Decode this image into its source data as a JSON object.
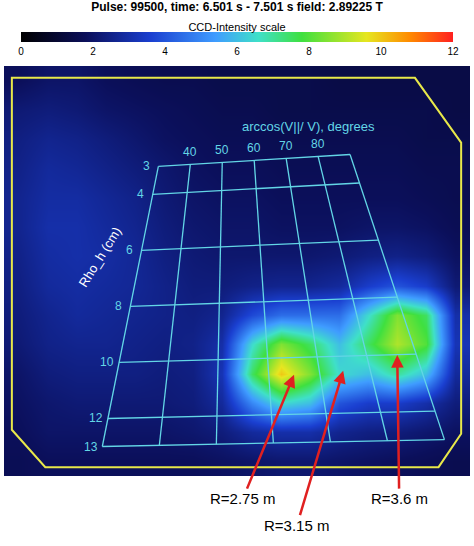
{
  "chart_data": {
    "type": "heatmap",
    "title": "Pulse: 99500, time: 6.501 s - 7.501 s field: 2.89225 T",
    "colorbar_title": "CCD-Intensity scale",
    "clim": [
      0,
      12
    ],
    "cticks": [
      0,
      2,
      4,
      6,
      8,
      10,
      12
    ],
    "tick_labels": false,
    "z": [
      [
        1.8,
        2,
        2,
        1.8,
        1.7,
        1.6,
        1.6,
        1.5,
        1.5,
        1.5,
        1.5,
        1.4,
        1.4,
        1.4,
        1.4,
        1.4
      ],
      [
        2.2,
        2.3,
        2.2,
        2,
        1.9,
        1.8,
        1.7,
        1.6,
        1.6,
        1.5,
        1.5,
        1.5,
        1.5,
        1.5,
        1.5,
        1.4
      ],
      [
        2.4,
        2.6,
        2.5,
        2.3,
        2.1,
        1.9,
        1.8,
        1.7,
        1.7,
        1.6,
        1.6,
        1.6,
        1.6,
        1.6,
        1.5,
        1.5
      ],
      [
        2.5,
        2.8,
        2.7,
        2.5,
        2.3,
        2.1,
        1.9,
        1.8,
        1.8,
        1.7,
        1.7,
        1.7,
        1.7,
        1.7,
        1.6,
        1.6
      ],
      [
        2.6,
        2.9,
        2.9,
        2.7,
        2.5,
        2.2,
        2,
        1.9,
        1.9,
        1.8,
        1.8,
        1.8,
        1.8,
        1.8,
        1.7,
        1.6
      ],
      [
        2.6,
        3,
        3,
        2.8,
        2.6,
        2.3,
        2.1,
        2,
        2,
        1.9,
        1.9,
        1.9,
        2,
        2,
        1.9,
        1.7
      ],
      [
        2.5,
        2.9,
        3,
        2.9,
        2.7,
        2.4,
        2.2,
        2.1,
        2.1,
        2.1,
        2.1,
        2.2,
        2.4,
        2.5,
        2.3,
        1.9
      ],
      [
        2.4,
        2.8,
        2.9,
        2.8,
        2.7,
        2.5,
        2.3,
        2.3,
        2.5,
        2.6,
        2.6,
        2.8,
        3.5,
        4,
        3.5,
        2.2
      ],
      [
        2.3,
        2.6,
        2.8,
        2.7,
        2.6,
        2.5,
        2.4,
        2.6,
        3.8,
        4.5,
        4.5,
        4.5,
        6.5,
        8.5,
        7.5,
        3
      ],
      [
        2.2,
        2.5,
        2.6,
        2.6,
        2.5,
        2.4,
        2.5,
        3,
        6.5,
        8.5,
        7.5,
        6,
        7.5,
        9,
        8,
        3.2
      ],
      [
        2,
        2.3,
        2.4,
        2.4,
        2.4,
        2.3,
        2.4,
        3.2,
        7.5,
        10,
        8.5,
        6.5,
        6,
        7,
        6,
        2.8
      ],
      [
        1.9,
        2.1,
        2.2,
        2.2,
        2.2,
        2.2,
        2.3,
        2.8,
        5,
        6.5,
        6,
        4,
        3.5,
        3.5,
        3,
        2.3
      ],
      [
        1.8,
        2,
        2,
        2,
        2,
        2,
        2.1,
        2.3,
        2.8,
        3,
        3,
        2.6,
        2.4,
        2.3,
        2.1,
        1.9
      ],
      [
        1.7,
        1.8,
        1.8,
        1.8,
        1.8,
        1.8,
        1.8,
        1.9,
        2,
        2.1,
        2.1,
        2,
        1.9,
        1.8,
        1.7,
        1.6
      ]
    ],
    "overlay": {
      "x_title": "arccos(V||/ V), degrees",
      "x_labels": [
        40,
        50,
        60,
        70,
        80
      ],
      "y_title": "Rho_h (cm)",
      "y_labels": [
        3,
        4,
        6,
        8,
        10,
        12,
        13
      ]
    },
    "annotations": [
      "R=2.75 m",
      "R=3.15 m",
      "R=3.6 m"
    ]
  }
}
